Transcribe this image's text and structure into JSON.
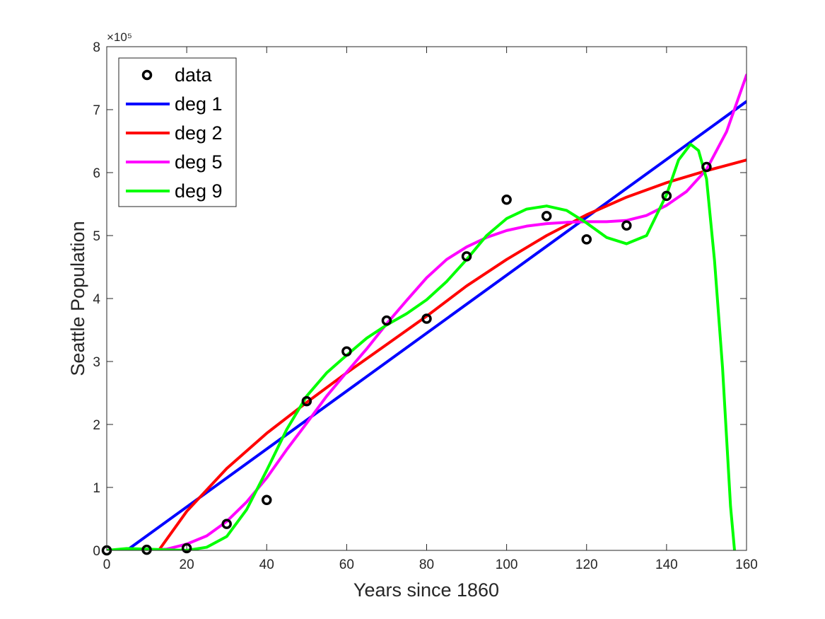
{
  "chart_data": {
    "type": "scatter",
    "xlabel": "Years since 1860",
    "ylabel": "Seattle Population",
    "y_exponent_label": "×10⁵",
    "xlim": [
      0,
      160
    ],
    "ylim": [
      0,
      800000
    ],
    "x_ticks": [
      0,
      20,
      40,
      60,
      80,
      100,
      120,
      140,
      160
    ],
    "y_ticks": [
      0,
      100000,
      200000,
      300000,
      400000,
      500000,
      600000,
      700000,
      800000
    ],
    "x_tick_labels": [
      "0",
      "20",
      "40",
      "60",
      "80",
      "100",
      "120",
      "140",
      "160"
    ],
    "y_tick_labels": [
      "0",
      "1",
      "2",
      "3",
      "4",
      "5",
      "6",
      "7",
      "8"
    ],
    "grid": false,
    "legend_position": "top-left",
    "legend": [
      "data",
      "deg 1",
      "deg 2",
      "deg 5",
      "deg 9"
    ],
    "data_points": {
      "name": "data",
      "color": "#000000",
      "x": [
        0,
        10,
        20,
        30,
        40,
        50,
        60,
        70,
        80,
        90,
        100,
        110,
        120,
        130,
        140,
        150
      ],
      "y": [
        0,
        1000,
        3500,
        42000,
        80000,
        237000,
        316000,
        365000,
        368000,
        467000,
        557000,
        531000,
        494000,
        516000,
        563000,
        609000
      ]
    },
    "series": [
      {
        "name": "deg 1",
        "color": "#0000ff",
        "x": [
          0,
          5,
          160
        ],
        "y": [
          0,
          0,
          713000
        ]
      },
      {
        "name": "deg 2",
        "color": "#ff0000",
        "x": [
          0,
          10,
          13,
          20,
          30,
          40,
          50,
          60,
          70,
          80,
          90,
          100,
          110,
          120,
          130,
          140,
          150,
          160
        ],
        "y": [
          0,
          0,
          0,
          62000,
          130000,
          186000,
          235000,
          282000,
          327000,
          372000,
          420000,
          462000,
          500000,
          533000,
          561000,
          584000,
          603000,
          620000
        ]
      },
      {
        "name": "deg 5",
        "color": "#ff00ff",
        "x": [
          0,
          5,
          10,
          15,
          20,
          25,
          30,
          35,
          40,
          45,
          50,
          55,
          60,
          65,
          70,
          75,
          80,
          85,
          90,
          95,
          100,
          105,
          110,
          115,
          120,
          125,
          130,
          135,
          140,
          145,
          150,
          155,
          160
        ],
        "y": [
          0,
          0,
          0,
          2000,
          10000,
          23000,
          46000,
          77000,
          115000,
          160000,
          202000,
          245000,
          283000,
          320000,
          360000,
          397000,
          433000,
          462000,
          482000,
          497000,
          508000,
          515000,
          519000,
          521000,
          522000,
          522000,
          524000,
          532000,
          548000,
          570000,
          605000,
          665000,
          755000
        ]
      },
      {
        "name": "deg 9",
        "color": "#00ff00",
        "x": [
          0,
          5,
          10,
          15,
          20,
          25,
          30,
          35,
          40,
          45,
          50,
          55,
          60,
          65,
          70,
          75,
          80,
          85,
          90,
          95,
          100,
          105,
          110,
          115,
          120,
          125,
          130,
          135,
          140,
          143,
          146,
          148,
          150,
          152,
          154,
          155,
          156,
          157
        ],
        "y": [
          0,
          3000,
          2000,
          1000,
          0,
          5000,
          22000,
          65000,
          127000,
          192000,
          245000,
          282000,
          310000,
          337000,
          358000,
          376000,
          398000,
          427000,
          462000,
          500000,
          527000,
          542000,
          547000,
          540000,
          520000,
          497000,
          487000,
          500000,
          565000,
          620000,
          645000,
          635000,
          590000,
          460000,
          290000,
          180000,
          70000,
          0
        ]
      }
    ]
  }
}
